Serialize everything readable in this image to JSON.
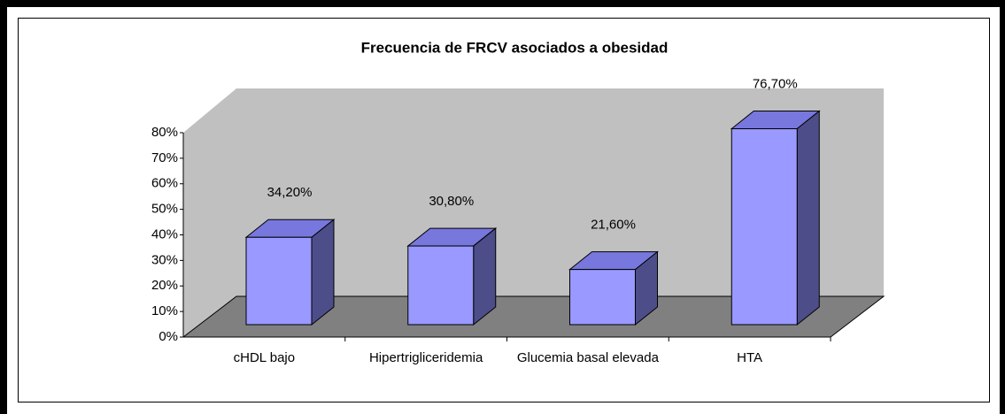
{
  "chart_data": {
    "type": "bar3d",
    "title": "Frecuencia de FRCV asociados a obesidad",
    "categories": [
      "cHDL bajo",
      "Hipertrigliceridemia",
      "Glucemia basal elevada",
      "HTA"
    ],
    "values": [
      34.2,
      30.8,
      21.6,
      76.7
    ],
    "value_labels": [
      "34,20%",
      "30,80%",
      "21,60%",
      "76,70%"
    ],
    "color": "#9999ff",
    "ylim": [
      0,
      80
    ],
    "yticks": [
      {
        "value": 0,
        "label": "0%"
      },
      {
        "value": 10,
        "label": "10%"
      },
      {
        "value": 20,
        "label": "20%"
      },
      {
        "value": 30,
        "label": "30%"
      },
      {
        "value": 40,
        "label": "40%"
      },
      {
        "value": 50,
        "label": "50%"
      },
      {
        "value": 60,
        "label": "60%"
      },
      {
        "value": 70,
        "label": "70%"
      },
      {
        "value": 80,
        "label": "80%"
      }
    ]
  }
}
